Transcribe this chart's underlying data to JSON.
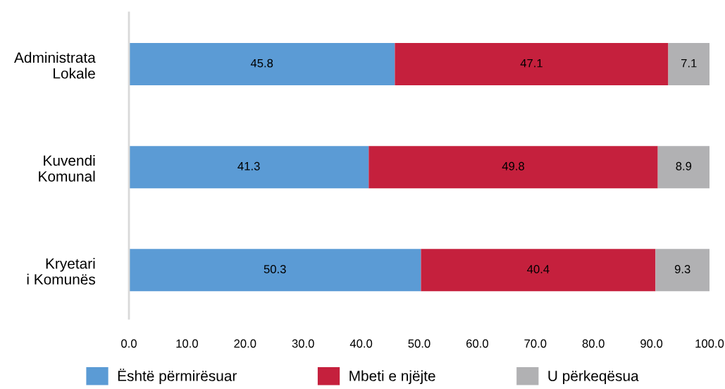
{
  "chart_data": {
    "type": "bar",
    "orientation": "horizontal",
    "stacked": true,
    "categories": [
      "Administrata\nLokale",
      "Kuvendi\nKomunal",
      "Kryetari\ni Komunës"
    ],
    "series": [
      {
        "name": "Është përmirësuar",
        "color": "#5b9bd5",
        "values": [
          45.8,
          41.3,
          50.3
        ]
      },
      {
        "name": "Mbeti e njëjte",
        "color": "#c5203d",
        "values": [
          47.1,
          49.8,
          40.4
        ]
      },
      {
        "name": "U përkeqësua",
        "color": "#b1b1b3",
        "values": [
          7.1,
          8.9,
          9.3
        ]
      }
    ],
    "xlim": [
      0,
      100
    ],
    "xticks": [
      {
        "value": 0,
        "label": "0.0"
      },
      {
        "value": 10,
        "label": "10.0"
      },
      {
        "value": 20,
        "label": "20.0"
      },
      {
        "value": 30,
        "label": "30.0"
      },
      {
        "value": 40,
        "label": "40.0"
      },
      {
        "value": 50,
        "label": "50.0"
      },
      {
        "value": 60,
        "label": "60.0"
      },
      {
        "value": 70,
        "label": "70.0"
      },
      {
        "value": 80,
        "label": "80.0"
      },
      {
        "value": 90,
        "label": "90.0"
      },
      {
        "value": 100,
        "label": "100.0"
      }
    ],
    "data_labels": true,
    "legend": "bottom",
    "grid": false
  }
}
